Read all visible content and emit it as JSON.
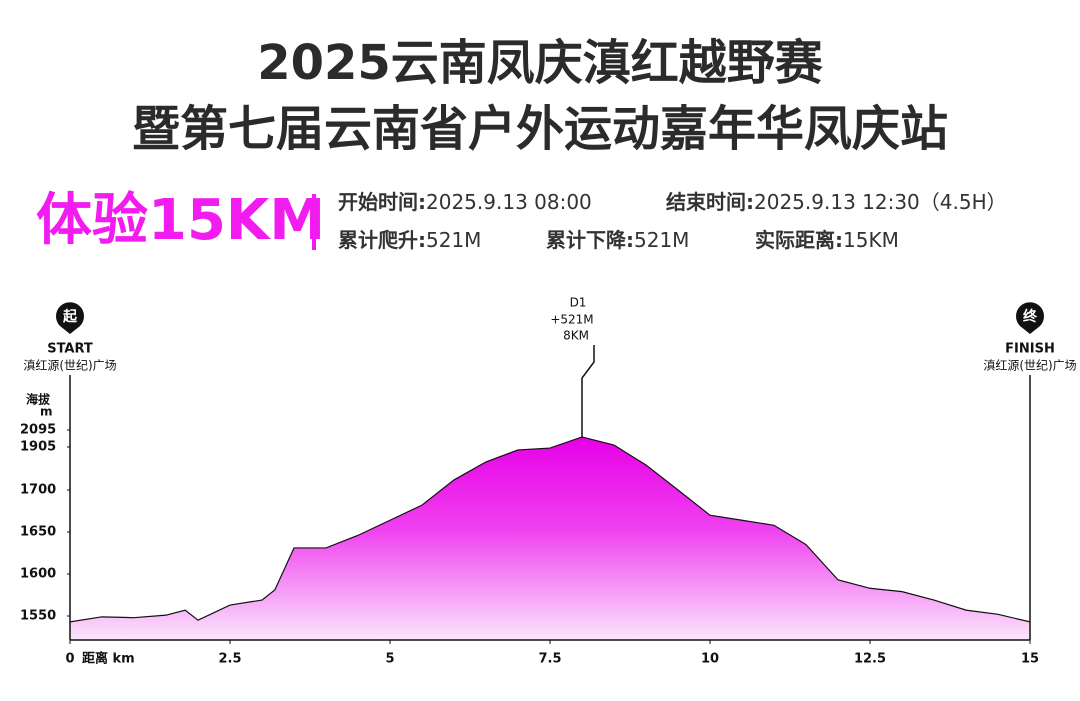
{
  "header": {
    "title_line1": "2025云南凤庆滇红越野赛",
    "title_line2": "暨第七届云南省户外运动嘉年华凤庆站",
    "subtitle": "体验15KM",
    "info": [
      {
        "label": "开始时间:",
        "value": "2025.9.13 08:00"
      },
      {
        "label": "结束时间:",
        "value": "2025.9.13  12:30（4.5H）"
      },
      {
        "label": "累计爬升:",
        "value": "521M"
      },
      {
        "label": "累计下降:",
        "value": "521M"
      },
      {
        "label": "实际距离:",
        "value": "15KM"
      }
    ]
  },
  "chart_data": {
    "type": "area",
    "y_label_line1": "海拔",
    "y_label_line2": "m",
    "x_label": "距离 km",
    "x": [
      0,
      0.5,
      1,
      1.5,
      1.8,
      2,
      2.5,
      3,
      3.2,
      3.5,
      4,
      4.5,
      5,
      5.5,
      6,
      6.5,
      7,
      7.5,
      8,
      8.5,
      9,
      9.5,
      10,
      10.5,
      11,
      11.5,
      12,
      12.5,
      13,
      13.5,
      14,
      14.5,
      15
    ],
    "values": [
      1543,
      1549,
      1548,
      1551,
      1557,
      1545,
      1563,
      1569,
      1581,
      1631,
      1631,
      1646,
      1664,
      1682,
      1748,
      1834,
      1891,
      1900,
      2017,
      1927,
      1819,
      1700,
      1670,
      1664,
      1658,
      1635,
      1593,
      1583,
      1579,
      1569,
      1557,
      1552,
      1543
    ],
    "color": "#e600e6",
    "xlim": [
      0,
      15
    ],
    "xticks": [
      0,
      2.5,
      5,
      7.5,
      10,
      12.5,
      15
    ],
    "ylim": [
      1521,
      2095
    ],
    "yticks": [
      1550,
      1600,
      1650,
      1700,
      1905,
      2095
    ],
    "start": {
      "icon": "起",
      "label": "START",
      "place": "滇红源(世纪)广场"
    },
    "finish": {
      "icon": "终",
      "label": "FINISH",
      "place": "滇红源(世纪)广场"
    },
    "checkpoint": {
      "x": 8,
      "name": "D1",
      "gain": "+521M",
      "distance": "8KM"
    }
  }
}
